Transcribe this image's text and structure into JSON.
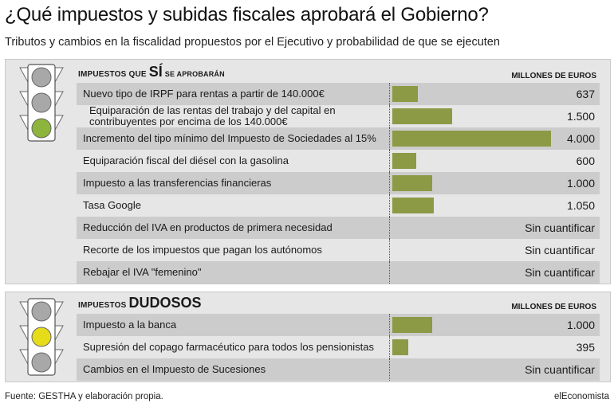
{
  "title": "¿Qué impuestos y subidas fiscales aprobará el Gobierno?",
  "subtitle": "Tributos y cambios en la fiscalidad propuestos por el Ejecutivo y probabilidad de que se ejecuten",
  "footer": {
    "source": "Fuente: GESTHA y elaboración propia.",
    "brand": "elEconomista"
  },
  "colors": {
    "bar": "#8c9a46",
    "light_green": "#8db53b",
    "light_yellow": "#e6dc1a",
    "light_off": "#a8a8a8",
    "panel": "#e6e6e6",
    "row_shaded": "#cccccc"
  },
  "sections": [
    {
      "header_prefix": "IMPUESTOS QUE",
      "header_big": "SÍ",
      "header_suffix": "SE APROBARÁN",
      "unit_label": "MILLONES DE EUROS",
      "light": "green"
    },
    {
      "header_prefix": "IMPUESTOS",
      "header_big": "DUDOSOS",
      "header_suffix": "",
      "unit_label": "MILLONES DE EUROS",
      "light": "yellow"
    }
  ],
  "chart_data": {
    "type": "bar",
    "orientation": "horizontal",
    "xlim": [
      0,
      4000
    ],
    "groups": [
      {
        "name": "IMPUESTOS QUE SÍ SE APROBARÁN",
        "items": [
          {
            "label": "Nuevo tipo de IRPF para rentas a partir de 140.000€",
            "value": 637,
            "display": "637"
          },
          {
            "label": "Equiparación de las rentas del trabajo y del capital en contribuyentes por encima de los 140.000€",
            "value": 1500,
            "display": "1.500"
          },
          {
            "label": "Incremento del tipo mínimo del Impuesto de Sociedades al 15%",
            "value": 4000,
            "display": "4.000"
          },
          {
            "label": "Equiparación fiscal del diésel con la gasolina",
            "value": 600,
            "display": "600"
          },
          {
            "label": "Impuesto a las transferencias financieras",
            "value": 1000,
            "display": "1.000"
          },
          {
            "label": "Tasa Google",
            "value": 1050,
            "display": "1.050"
          },
          {
            "label": "Reducción del IVA en productos de primera necesidad",
            "value": null,
            "display": "Sin cuantificar"
          },
          {
            "label": "Recorte de los impuestos que pagan los autónomos",
            "value": null,
            "display": "Sin cuantificar"
          },
          {
            "label": "Rebajar el IVA \"femenino\"",
            "value": null,
            "display": "Sin cuantificar"
          }
        ]
      },
      {
        "name": "IMPUESTOS DUDOSOS",
        "items": [
          {
            "label": "Impuesto a la banca",
            "value": 1000,
            "display": "1.000"
          },
          {
            "label": "Supresión del copago farmacéutico para todos los pensionistas",
            "value": 395,
            "display": "395"
          },
          {
            "label": "Cambios en el Impuesto de Sucesiones",
            "value": null,
            "display": "Sin cuantificar"
          }
        ]
      }
    ]
  }
}
